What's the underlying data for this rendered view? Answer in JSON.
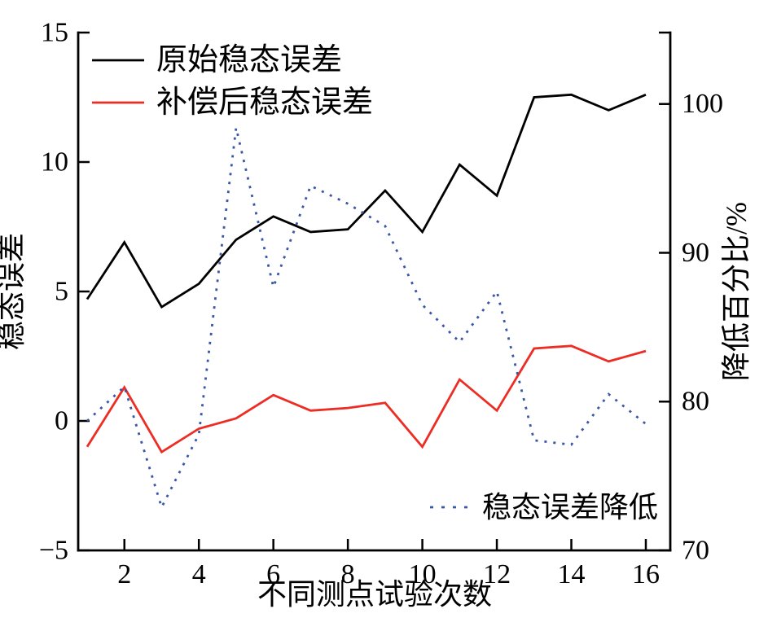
{
  "chart_data": {
    "type": "line",
    "title": "",
    "xlabel": "不同测点试验次数",
    "ylabel_left": "稳态误差",
    "ylabel_right": "降低百分比/%",
    "xlim": [
      1,
      16
    ],
    "ylim_left": [
      -5,
      15
    ],
    "ylim_right": [
      70,
      104.8
    ],
    "x_ticks": [
      2,
      4,
      6,
      8,
      10,
      12,
      14,
      16
    ],
    "y_ticks_left": [
      15,
      10,
      5,
      0,
      -5
    ],
    "y_ticks_right": [
      100,
      90,
      80,
      70
    ],
    "grid": false,
    "legend_position": {
      "solid_series": "top-left",
      "dotted_series": "bottom-right"
    },
    "x": [
      1,
      2,
      3,
      4,
      5,
      6,
      7,
      8,
      9,
      10,
      11,
      12,
      13,
      14,
      15,
      16
    ],
    "series": [
      {
        "name": "原始稳态误差",
        "axis": "left",
        "color": "#000000",
        "style": "solid",
        "values": [
          4.7,
          6.9,
          4.4,
          5.3,
          7.0,
          7.9,
          7.3,
          7.4,
          8.9,
          7.3,
          9.9,
          8.7,
          12.5,
          12.6,
          12.0,
          12.6
        ]
      },
      {
        "name": "补偿后稳态误差",
        "axis": "left",
        "color": "#ed2c24",
        "style": "solid",
        "values": [
          -1.0,
          1.3,
          -1.2,
          -0.3,
          0.1,
          1.0,
          0.4,
          0.5,
          0.7,
          -1.0,
          1.6,
          0.4,
          2.8,
          2.9,
          2.3,
          2.7
        ]
      },
      {
        "name": "稳态误差降低",
        "axis": "right",
        "color": "#3a57a7",
        "style": "dotted",
        "values": [
          78.7,
          81.0,
          72.9,
          77.8,
          98.4,
          87.7,
          94.5,
          93.3,
          91.8,
          86.5,
          84.0,
          87.4,
          77.4,
          77.1,
          80.5,
          78.5
        ]
      }
    ]
  }
}
